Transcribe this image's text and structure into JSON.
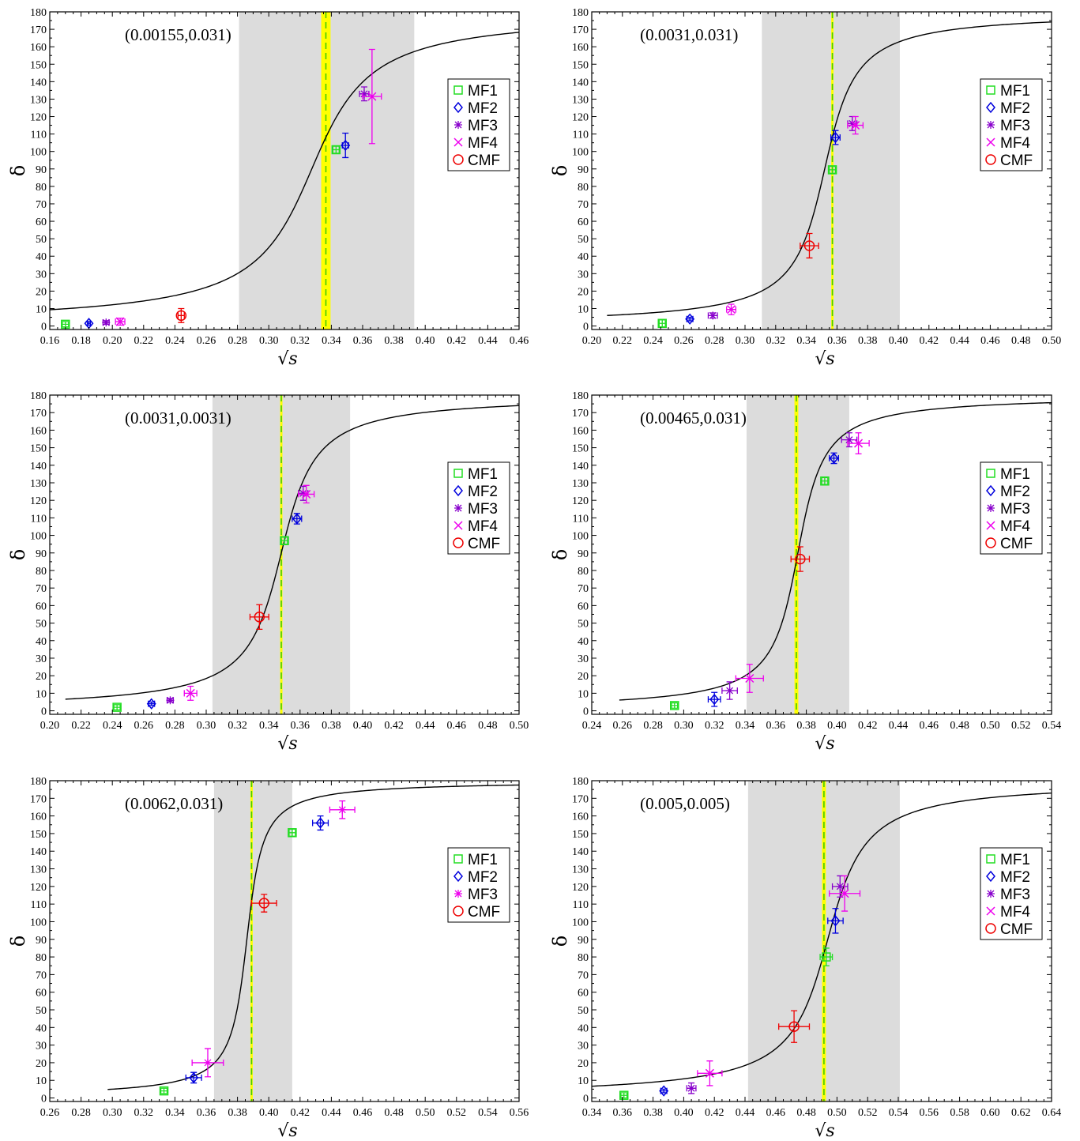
{
  "colors": {
    "MF1": "#22dd22",
    "MF2": "#0000dd",
    "MF3": "#8800cc",
    "MF3b": "#ee00ee",
    "MF4": "#ee00ee",
    "CMF": "#ee0000",
    "band": "#dcdcdc",
    "line_yellow": "#ffff00",
    "curve": "#000000"
  },
  "chart_data": [
    {
      "type": "scatter",
      "title": "(0.00155,0.031)",
      "xlabel": "√s",
      "ylabel": "δ",
      "xlim": [
        0.16,
        0.46
      ],
      "ylim": [
        -2,
        180
      ],
      "xticks": [
        "0.16",
        "0.18",
        "0.20",
        "0.22",
        "0.24",
        "0.26",
        "0.28",
        "0.30",
        "0.32",
        "0.34",
        "0.36",
        "0.38",
        "0.40",
        "0.42",
        "0.44",
        "0.46"
      ],
      "yticks": [
        "0",
        "10",
        "20",
        "30",
        "40",
        "50",
        "60",
        "70",
        "80",
        "90",
        "100",
        "110",
        "120",
        "130",
        "140",
        "150",
        "160",
        "170",
        "180"
      ],
      "legend": [
        "MF1",
        "MF2",
        "MF3",
        "MF4",
        "CMF"
      ],
      "legend_position": "right",
      "band": [
        0.281,
        0.393
      ],
      "vline": {
        "x": 0.3365,
        "width": 0.006
      },
      "curve": {
        "x0": 0.3275,
        "w": 0.0275,
        "xstart": 0.16,
        "xend": 0.46
      },
      "series": [
        {
          "name": "MF1",
          "marker": "square",
          "color": "MF1",
          "points": [
            [
              0.17,
              1,
              0.002,
              1.5
            ],
            [
              0.343,
              101,
              0.002,
              2
            ]
          ]
        },
        {
          "name": "MF2",
          "marker": "diamond",
          "color": "MF2",
          "points": [
            [
              0.185,
              1.5,
              0.001,
              1
            ],
            [
              0.349,
              103.5,
              0.002,
              7
            ]
          ]
        },
        {
          "name": "MF3",
          "marker": "star",
          "color": "MF3",
          "points": [
            [
              0.196,
              2,
              0.002,
              1
            ],
            [
              0.361,
              133,
              0.003,
              4
            ]
          ]
        },
        {
          "name": "MF4",
          "marker": "x",
          "color": "MF4",
          "points": [
            [
              0.205,
              2.5,
              0.003,
              2
            ],
            [
              0.366,
              131.5,
              0.006,
              27
            ]
          ]
        },
        {
          "name": "CMF",
          "marker": "circle",
          "color": "CMF",
          "points": [
            [
              0.244,
              6,
              0.002,
              4
            ]
          ]
        }
      ]
    },
    {
      "type": "scatter",
      "title": "(0.0031,0.031)",
      "xlabel": "√s",
      "ylabel": "δ",
      "xlim": [
        0.2,
        0.5
      ],
      "ylim": [
        -2,
        180
      ],
      "xticks": [
        "0.20",
        "0.22",
        "0.24",
        "0.26",
        "0.28",
        "0.30",
        "0.32",
        "0.34",
        "0.36",
        "0.38",
        "0.40",
        "0.42",
        "0.44",
        "0.46",
        "0.48",
        "0.50"
      ],
      "yticks": [
        "0",
        "10",
        "20",
        "30",
        "40",
        "50",
        "60",
        "70",
        "80",
        "90",
        "100",
        "110",
        "120",
        "130",
        "140",
        "150",
        "160",
        "170",
        "180"
      ],
      "legend": [
        "MF1",
        "MF2",
        "MF3",
        "MF4",
        "CMF"
      ],
      "legend_position": "right",
      "band": [
        0.311,
        0.401
      ],
      "vline": {
        "x": 0.357,
        "width": 0.0015
      },
      "curve": {
        "x0": 0.352,
        "w": 0.015,
        "xstart": 0.21,
        "xend": 0.5
      },
      "series": [
        {
          "name": "MF1",
          "marker": "square",
          "color": "MF1",
          "points": [
            [
              0.246,
              1.5,
              0.002,
              2
            ],
            [
              0.357,
              89.5,
              0.002,
              2
            ]
          ]
        },
        {
          "name": "MF2",
          "marker": "diamond",
          "color": "MF2",
          "points": [
            [
              0.264,
              4,
              0.002,
              1
            ],
            [
              0.359,
              108,
              0.003,
              4
            ]
          ]
        },
        {
          "name": "MF3",
          "marker": "star",
          "color": "MF3",
          "points": [
            [
              0.279,
              6,
              0.003,
              1.5
            ],
            [
              0.37,
              116,
              0.003,
              4
            ]
          ]
        },
        {
          "name": "MF4",
          "marker": "x",
          "color": "MF4",
          "points": [
            [
              0.291,
              9.5,
              0.003,
              3
            ],
            [
              0.372,
              115,
              0.005,
              5
            ]
          ]
        },
        {
          "name": "CMF",
          "marker": "circle",
          "color": "CMF",
          "points": [
            [
              0.342,
              46,
              0.006,
              7
            ]
          ]
        }
      ]
    },
    {
      "type": "scatter",
      "title": "(0.0031,0.0031)",
      "xlabel": "√s",
      "ylabel": "δ",
      "xlim": [
        0.2,
        0.5
      ],
      "ylim": [
        -2,
        180
      ],
      "xticks": [
        "0.20",
        "0.22",
        "0.24",
        "0.26",
        "0.28",
        "0.30",
        "0.32",
        "0.34",
        "0.36",
        "0.38",
        "0.40",
        "0.42",
        "0.44",
        "0.46",
        "0.48",
        "0.50"
      ],
      "yticks": [
        "0",
        "10",
        "20",
        "30",
        "40",
        "50",
        "60",
        "70",
        "80",
        "90",
        "100",
        "110",
        "120",
        "130",
        "140",
        "150",
        "160",
        "170",
        "180"
      ],
      "legend": [
        "MF1",
        "MF2",
        "MF3",
        "MF4",
        "CMF"
      ],
      "legend_position": "right",
      "band": [
        0.304,
        0.392
      ],
      "vline": {
        "x": 0.348,
        "width": 0.0015
      },
      "curve": {
        "x0": 0.348,
        "w": 0.016,
        "xstart": 0.21,
        "xend": 0.5
      },
      "series": [
        {
          "name": "MF1",
          "marker": "square",
          "color": "MF1",
          "points": [
            [
              0.243,
              2,
              0.002,
              1.5
            ],
            [
              0.35,
              97,
              0.002,
              2
            ]
          ]
        },
        {
          "name": "MF2",
          "marker": "diamond",
          "color": "MF2",
          "points": [
            [
              0.265,
              4,
              0.002,
              1
            ],
            [
              0.358,
              109.5,
              0.003,
              3
            ]
          ]
        },
        {
          "name": "MF3",
          "marker": "star",
          "color": "MF3",
          "points": [
            [
              0.277,
              6,
              0.002,
              1
            ],
            [
              0.362,
              124,
              0.003,
              4
            ]
          ]
        },
        {
          "name": "MF4",
          "marker": "x",
          "color": "MF4",
          "points": [
            [
              0.29,
              10,
              0.004,
              4
            ],
            [
              0.364,
              123.5,
              0.005,
              5
            ]
          ]
        },
        {
          "name": "CMF",
          "marker": "circle",
          "color": "CMF",
          "points": [
            [
              0.334,
              53.5,
              0.006,
              7
            ]
          ]
        }
      ]
    },
    {
      "type": "scatter",
      "title": "(0.00465,0.031)",
      "xlabel": "√s",
      "ylabel": "δ",
      "xlim": [
        0.24,
        0.54
      ],
      "ylim": [
        -2,
        180
      ],
      "xticks": [
        "0.24",
        "0.26",
        "0.28",
        "0.30",
        "0.32",
        "0.34",
        "0.36",
        "0.38",
        "0.40",
        "0.42",
        "0.44",
        "0.46",
        "0.48",
        "0.50",
        "0.52",
        "0.54"
      ],
      "yticks": [
        "0",
        "10",
        "20",
        "30",
        "40",
        "50",
        "60",
        "70",
        "80",
        "90",
        "100",
        "110",
        "120",
        "130",
        "140",
        "150",
        "160",
        "170",
        "180"
      ],
      "legend": [
        "MF1",
        "MF2",
        "MF3",
        "MF4",
        "CMF"
      ],
      "legend_position": "right",
      "band": [
        0.341,
        0.408
      ],
      "vline": {
        "x": 0.3735,
        "width": 0.0025
      },
      "curve": {
        "x0": 0.3745,
        "w": 0.0125,
        "xstart": 0.258,
        "xend": 0.54
      },
      "series": [
        {
          "name": "MF1",
          "marker": "square",
          "color": "MF1",
          "points": [
            [
              0.294,
              3,
              0.002,
              1.5
            ],
            [
              0.392,
              131,
              0.002,
              2
            ]
          ]
        },
        {
          "name": "MF2",
          "marker": "diamond",
          "color": "MF2",
          "points": [
            [
              0.32,
              6.5,
              0.004,
              4
            ],
            [
              0.398,
              144,
              0.003,
              3
            ]
          ]
        },
        {
          "name": "MF3",
          "marker": "star",
          "color": "MF3",
          "points": [
            [
              0.33,
              11.5,
              0.005,
              5
            ],
            [
              0.408,
              154.5,
              0.005,
              4
            ]
          ]
        },
        {
          "name": "MF4",
          "marker": "x",
          "color": "MF4",
          "points": [
            [
              0.343,
              18.5,
              0.009,
              8
            ],
            [
              0.414,
              152.5,
              0.007,
              6
            ]
          ]
        },
        {
          "name": "CMF",
          "marker": "circle",
          "color": "CMF",
          "points": [
            [
              0.376,
              86.5,
              0.006,
              7
            ]
          ]
        }
      ]
    },
    {
      "type": "scatter",
      "title": "(0.0062,0.031)",
      "xlabel": "√s",
      "ylabel": "δ",
      "xlim": [
        0.26,
        0.56
      ],
      "ylim": [
        -2,
        180
      ],
      "xticks": [
        "0.26",
        "0.28",
        "0.30",
        "0.32",
        "0.34",
        "0.36",
        "0.38",
        "0.40",
        "0.42",
        "0.44",
        "0.46",
        "0.48",
        "0.50",
        "0.52",
        "0.54",
        "0.56"
      ],
      "yticks": [
        "0",
        "10",
        "20",
        "30",
        "40",
        "50",
        "60",
        "70",
        "80",
        "90",
        "100",
        "110",
        "120",
        "130",
        "140",
        "150",
        "160",
        "170",
        "180"
      ],
      "legend": [
        "MF1",
        "MF2",
        "MF3",
        "CMF"
      ],
      "legend_position": "right",
      "band": [
        0.365,
        0.415
      ],
      "vline": {
        "x": 0.389,
        "width": 0.0015
      },
      "curve": {
        "x0": 0.386,
        "w": 0.0075,
        "xstart": 0.297,
        "xend": 0.56
      },
      "series": [
        {
          "name": "MF1",
          "marker": "square",
          "color": "MF1",
          "points": [
            [
              0.333,
              4,
              0.002,
              1.5
            ],
            [
              0.415,
              150.5,
              0.002,
              2
            ]
          ]
        },
        {
          "name": "MF2",
          "marker": "diamond",
          "color": "MF2",
          "points": [
            [
              0.352,
              11.5,
              0.005,
              3
            ],
            [
              0.433,
              156,
              0.005,
              4
            ]
          ]
        },
        {
          "name": "MF3",
          "marker": "star",
          "color": "MF3b",
          "points": [
            [
              0.361,
              20,
              0.01,
              8
            ],
            [
              0.447,
              163.5,
              0.008,
              5
            ]
          ]
        },
        {
          "name": "CMF",
          "marker": "circle",
          "color": "CMF",
          "points": [
            [
              0.397,
              110.5,
              0.008,
              5
            ]
          ]
        }
      ]
    },
    {
      "type": "scatter",
      "title": "(0.005,0.005)",
      "xlabel": "√s",
      "ylabel": "δ",
      "xlim": [
        0.34,
        0.64
      ],
      "ylim": [
        -2,
        180
      ],
      "xticks": [
        "0.34",
        "0.36",
        "0.38",
        "0.40",
        "0.42",
        "0.44",
        "0.46",
        "0.48",
        "0.50",
        "0.52",
        "0.54",
        "0.56",
        "0.58",
        "0.60",
        "0.62",
        "0.64"
      ],
      "yticks": [
        "0",
        "10",
        "20",
        "30",
        "40",
        "50",
        "60",
        "70",
        "80",
        "90",
        "100",
        "110",
        "120",
        "130",
        "140",
        "150",
        "160",
        "170",
        "180"
      ],
      "legend": [
        "MF1",
        "MF2",
        "MF3",
        "MF4",
        "CMF"
      ],
      "legend_position": "right",
      "band": [
        0.442,
        0.541
      ],
      "vline": {
        "x": 0.4915,
        "width": 0.0025
      },
      "curve": {
        "x0": 0.494,
        "w": 0.018,
        "xstart": 0.34,
        "xend": 0.64
      },
      "series": [
        {
          "name": "MF1",
          "marker": "square",
          "color": "MF1",
          "points": [
            [
              0.361,
              1.5,
              0.002,
              1.5
            ],
            [
              0.493,
              80,
              0.004,
              5
            ]
          ]
        },
        {
          "name": "MF2",
          "marker": "diamond",
          "color": "MF2",
          "points": [
            [
              0.387,
              4,
              0.002,
              1
            ],
            [
              0.499,
              100.5,
              0.005,
              7
            ]
          ]
        },
        {
          "name": "MF3",
          "marker": "star",
          "color": "MF3",
          "points": [
            [
              0.405,
              5.5,
              0.003,
              3
            ],
            [
              0.502,
              120,
              0.005,
              6
            ]
          ]
        },
        {
          "name": "MF4",
          "marker": "x",
          "color": "MF4",
          "points": [
            [
              0.417,
              14,
              0.008,
              7
            ],
            [
              0.505,
              116,
              0.01,
              10
            ]
          ]
        },
        {
          "name": "CMF",
          "marker": "circle",
          "color": "CMF",
          "points": [
            [
              0.472,
              40.5,
              0.01,
              9
            ]
          ]
        }
      ]
    }
  ]
}
